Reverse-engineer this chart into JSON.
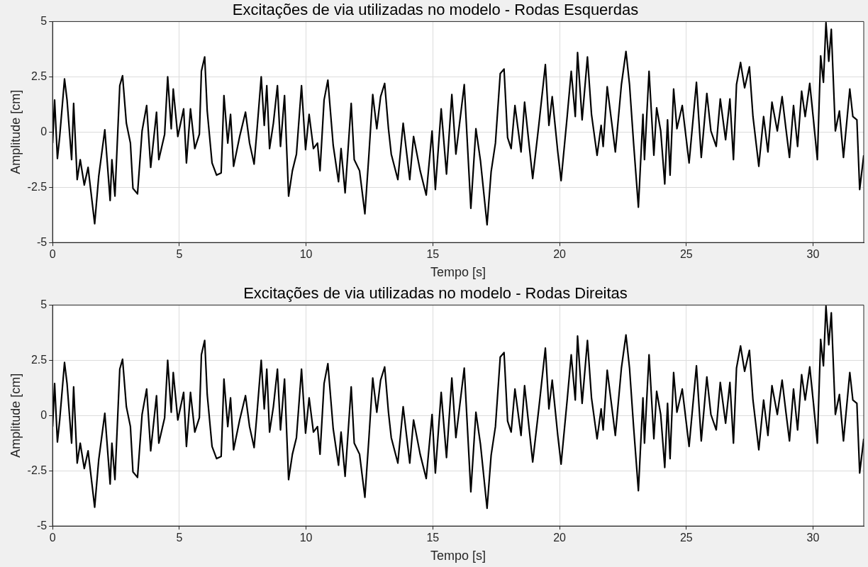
{
  "chart_data": [
    {
      "type": "line",
      "title": "Excitações de via utilizadas no modelo - Rodas Esquerdas",
      "xlabel": "Tempo [s]",
      "ylabel": "Amplitude [cm]",
      "xlim": [
        0,
        32
      ],
      "xticks": [
        0,
        5,
        10,
        15,
        20,
        25,
        30
      ],
      "ylim": [
        -5,
        5
      ],
      "yticks": [
        -5,
        -2.5,
        0,
        2.5,
        5
      ],
      "grid": true,
      "marker": "none",
      "line_style": "solid",
      "series": [
        {
          "color": "#000000",
          "x": [
            0,
            0.08,
            0.19,
            0.28,
            0.47,
            0.57,
            0.75,
            0.83,
            0.97,
            1.09,
            1.25,
            1.4,
            1.66,
            1.82,
            2.06,
            2.27,
            2.34,
            2.46,
            2.65,
            2.76,
            2.91,
            3.07,
            3.17,
            3.35,
            3.53,
            3.71,
            3.87,
            4.1,
            4.19,
            4.42,
            4.54,
            4.68,
            4.76,
            4.94,
            5.17,
            5.28,
            5.44,
            5.61,
            5.79,
            5.87,
            6.0,
            6.1,
            6.29,
            6.47,
            6.65,
            6.76,
            6.91,
            7.02,
            7.14,
            7.38,
            7.61,
            7.77,
            7.95,
            8.06,
            8.23,
            8.35,
            8.45,
            8.56,
            8.71,
            8.87,
            8.99,
            9.15,
            9.31,
            9.46,
            9.62,
            9.82,
            9.98,
            10.12,
            10.29,
            10.45,
            10.55,
            10.71,
            10.86,
            11.07,
            11.28,
            11.38,
            11.54,
            11.78,
            11.9,
            12.11,
            12.32,
            12.48,
            12.63,
            12.79,
            12.94,
            13.1,
            13.25,
            13.36,
            13.62,
            13.83,
            14.09,
            14.24,
            14.5,
            14.74,
            14.97,
            15.1,
            15.33,
            15.54,
            15.75,
            15.91,
            16.24,
            16.5,
            16.7,
            16.88,
            17.14,
            17.3,
            17.47,
            17.66,
            17.81,
            17.95,
            18.09,
            18.24,
            18.48,
            18.62,
            18.94,
            19.18,
            19.44,
            19.58,
            19.71,
            19.93,
            20.06,
            20.3,
            20.46,
            20.62,
            20.71,
            20.89,
            21.1,
            21.26,
            21.48,
            21.64,
            21.72,
            21.88,
            22.06,
            22.2,
            22.44,
            22.62,
            22.76,
            22.92,
            23.11,
            23.29,
            23.35,
            23.53,
            23.72,
            23.83,
            23.99,
            24.15,
            24.26,
            24.36,
            24.5,
            24.63,
            24.84,
            25.11,
            25.4,
            25.59,
            25.81,
            25.97,
            26.18,
            26.34,
            26.55,
            26.72,
            26.86,
            26.98,
            27.14,
            27.3,
            27.49,
            27.63,
            27.86,
            28.05,
            28.22,
            28.38,
            28.59,
            28.78,
            28.93,
            29.07,
            29.23,
            29.39,
            29.55,
            29.69,
            29.87,
            30.03,
            30.17,
            30.3,
            30.41,
            30.51,
            30.62,
            30.72,
            30.88,
            31.04,
            31.2,
            31.45,
            31.57,
            31.73,
            31.84,
            32.0
          ],
          "values": [
            -0.5,
            1.45,
            -1.2,
            -0.2,
            2.4,
            1.45,
            -1.25,
            1.3,
            -2.15,
            -1.25,
            -2.4,
            -1.6,
            -4.15,
            -2.0,
            0.1,
            -3.1,
            -1.25,
            -2.9,
            2.1,
            2.55,
            0.4,
            -0.5,
            -2.55,
            -2.8,
            0.05,
            1.2,
            -1.6,
            0.9,
            -1.25,
            -0.1,
            2.5,
            0.15,
            1.95,
            -0.2,
            1.05,
            -1.4,
            1.05,
            -0.75,
            -0.1,
            2.75,
            3.4,
            0.95,
            -1.4,
            -1.95,
            -1.85,
            1.65,
            -0.5,
            0.8,
            -1.55,
            -0.2,
            0.9,
            -0.5,
            -1.45,
            0.05,
            2.5,
            0.3,
            2.1,
            -0.75,
            0.4,
            2.1,
            -0.65,
            1.65,
            -2.9,
            -1.75,
            -1.0,
            2.1,
            -0.8,
            0.8,
            -0.75,
            -0.5,
            -1.75,
            1.45,
            2.35,
            -0.6,
            -2.25,
            -0.75,
            -2.75,
            1.3,
            -1.25,
            -1.75,
            -3.7,
            -1.0,
            1.7,
            0.15,
            1.6,
            2.2,
            0.15,
            -1.0,
            -2.15,
            0.4,
            -2.15,
            -0.2,
            -1.75,
            -2.85,
            0.05,
            -2.6,
            1.05,
            -1.9,
            1.7,
            -1.0,
            2.15,
            -3.45,
            0.15,
            -1.3,
            -4.2,
            -1.8,
            -0.5,
            2.65,
            2.85,
            -0.25,
            -0.75,
            1.2,
            -0.9,
            1.35,
            -2.1,
            0.3,
            3.05,
            0.3,
            1.6,
            -0.9,
            -2.2,
            0.7,
            2.75,
            0.7,
            3.6,
            0.55,
            3.4,
            0.8,
            -1.05,
            0.3,
            -0.65,
            2.05,
            0.4,
            -0.9,
            2.15,
            3.65,
            2.15,
            -0.5,
            -3.4,
            0.8,
            -1.25,
            2.75,
            -1.05,
            1.1,
            0.05,
            -2.35,
            0.55,
            -1.95,
            1.95,
            0.15,
            1.2,
            -1.4,
            2.25,
            -1.15,
            1.75,
            0.05,
            -0.65,
            1.5,
            -0.35,
            1.5,
            -1.25,
            2.15,
            3.15,
            2.0,
            2.95,
            0.7,
            -1.55,
            0.7,
            -0.9,
            1.35,
            0.05,
            1.6,
            0.15,
            -1.15,
            1.2,
            -0.65,
            1.85,
            0.7,
            2.2,
            0.4,
            -1.25,
            3.45,
            2.25,
            4.95,
            3.2,
            4.65,
            0.05,
            0.95,
            -1.15,
            1.95,
            0.7,
            0.55,
            -2.6,
            -1.05
          ]
        }
      ]
    },
    {
      "type": "line",
      "title": "Excitações de via utilizadas no modelo - Rodas Direitas",
      "xlabel": "Tempo [s]",
      "ylabel": "Amplitude [cm]",
      "xlim": [
        0,
        32
      ],
      "xticks": [
        0,
        5,
        10,
        15,
        20,
        25,
        30
      ],
      "ylim": [
        -5,
        5
      ],
      "yticks": [
        -5,
        -2.5,
        0,
        2.5,
        5
      ],
      "grid": true,
      "marker": "none",
      "line_style": "solid",
      "series": [
        {
          "color": "#000000",
          "x": [
            0,
            0.08,
            0.19,
            0.28,
            0.47,
            0.57,
            0.75,
            0.83,
            0.97,
            1.09,
            1.25,
            1.4,
            1.66,
            1.82,
            2.06,
            2.27,
            2.34,
            2.46,
            2.65,
            2.76,
            2.91,
            3.07,
            3.17,
            3.35,
            3.53,
            3.71,
            3.87,
            4.1,
            4.19,
            4.42,
            4.54,
            4.68,
            4.76,
            4.94,
            5.17,
            5.28,
            5.44,
            5.61,
            5.79,
            5.87,
            6.0,
            6.1,
            6.29,
            6.47,
            6.65,
            6.76,
            6.91,
            7.02,
            7.14,
            7.38,
            7.61,
            7.77,
            7.95,
            8.06,
            8.23,
            8.35,
            8.45,
            8.56,
            8.71,
            8.87,
            8.99,
            9.15,
            9.31,
            9.46,
            9.62,
            9.82,
            9.98,
            10.12,
            10.29,
            10.45,
            10.55,
            10.71,
            10.86,
            11.07,
            11.28,
            11.38,
            11.54,
            11.78,
            11.9,
            12.11,
            12.32,
            12.48,
            12.63,
            12.79,
            12.94,
            13.1,
            13.25,
            13.36,
            13.62,
            13.83,
            14.09,
            14.24,
            14.5,
            14.74,
            14.97,
            15.1,
            15.33,
            15.54,
            15.75,
            15.91,
            16.24,
            16.5,
            16.7,
            16.88,
            17.14,
            17.3,
            17.47,
            17.66,
            17.81,
            17.95,
            18.09,
            18.24,
            18.48,
            18.62,
            18.94,
            19.18,
            19.44,
            19.58,
            19.71,
            19.93,
            20.06,
            20.3,
            20.46,
            20.62,
            20.71,
            20.89,
            21.1,
            21.26,
            21.48,
            21.64,
            21.72,
            21.88,
            22.06,
            22.2,
            22.44,
            22.62,
            22.76,
            22.92,
            23.11,
            23.29,
            23.35,
            23.53,
            23.72,
            23.83,
            23.99,
            24.15,
            24.26,
            24.36,
            24.5,
            24.63,
            24.84,
            25.11,
            25.4,
            25.59,
            25.81,
            25.97,
            26.18,
            26.34,
            26.55,
            26.72,
            26.86,
            26.98,
            27.14,
            27.3,
            27.49,
            27.63,
            27.86,
            28.05,
            28.22,
            28.38,
            28.59,
            28.78,
            28.93,
            29.07,
            29.23,
            29.39,
            29.55,
            29.69,
            29.87,
            30.03,
            30.17,
            30.3,
            30.41,
            30.51,
            30.62,
            30.72,
            30.88,
            31.04,
            31.2,
            31.45,
            31.57,
            31.73,
            31.84,
            32.0
          ],
          "values": [
            -0.5,
            1.45,
            -1.2,
            -0.2,
            2.4,
            1.45,
            -1.25,
            1.3,
            -2.15,
            -1.25,
            -2.4,
            -1.6,
            -4.15,
            -2.0,
            0.1,
            -3.1,
            -1.25,
            -2.9,
            2.1,
            2.55,
            0.4,
            -0.5,
            -2.55,
            -2.8,
            0.05,
            1.2,
            -1.6,
            0.9,
            -1.25,
            -0.1,
            2.5,
            0.15,
            1.95,
            -0.2,
            1.05,
            -1.4,
            1.05,
            -0.75,
            -0.1,
            2.75,
            3.4,
            0.95,
            -1.4,
            -1.95,
            -1.85,
            1.65,
            -0.5,
            0.8,
            -1.55,
            -0.2,
            0.9,
            -0.5,
            -1.45,
            0.05,
            2.5,
            0.3,
            2.1,
            -0.75,
            0.4,
            2.1,
            -0.65,
            1.65,
            -2.9,
            -1.75,
            -1.0,
            2.1,
            -0.8,
            0.8,
            -0.75,
            -0.5,
            -1.75,
            1.45,
            2.35,
            -0.6,
            -2.25,
            -0.75,
            -2.75,
            1.3,
            -1.25,
            -1.75,
            -3.7,
            -1.0,
            1.7,
            0.15,
            1.6,
            2.2,
            0.15,
            -1.0,
            -2.15,
            0.4,
            -2.15,
            -0.2,
            -1.75,
            -2.85,
            0.05,
            -2.6,
            1.05,
            -1.9,
            1.7,
            -1.0,
            2.15,
            -3.45,
            0.15,
            -1.3,
            -4.2,
            -1.8,
            -0.5,
            2.65,
            2.85,
            -0.25,
            -0.75,
            1.2,
            -0.9,
            1.35,
            -2.1,
            0.3,
            3.05,
            0.3,
            1.6,
            -0.9,
            -2.2,
            0.7,
            2.75,
            0.7,
            3.6,
            0.55,
            3.4,
            0.8,
            -1.05,
            0.3,
            -0.65,
            2.05,
            0.4,
            -0.9,
            2.15,
            3.65,
            2.15,
            -0.5,
            -3.4,
            0.8,
            -1.25,
            2.75,
            -1.05,
            1.1,
            0.05,
            -2.35,
            0.55,
            -1.95,
            1.95,
            0.15,
            1.2,
            -1.4,
            2.25,
            -1.15,
            1.75,
            0.05,
            -0.65,
            1.5,
            -0.35,
            1.5,
            -1.25,
            2.15,
            3.15,
            2.0,
            2.95,
            0.7,
            -1.55,
            0.7,
            -0.9,
            1.35,
            0.05,
            1.6,
            0.15,
            -1.15,
            1.2,
            -0.65,
            1.85,
            0.7,
            2.2,
            0.4,
            -1.25,
            3.45,
            2.25,
            4.95,
            3.2,
            4.65,
            0.05,
            0.95,
            -1.15,
            1.95,
            0.7,
            0.55,
            -2.6,
            -1.05
          ]
        }
      ]
    }
  ]
}
